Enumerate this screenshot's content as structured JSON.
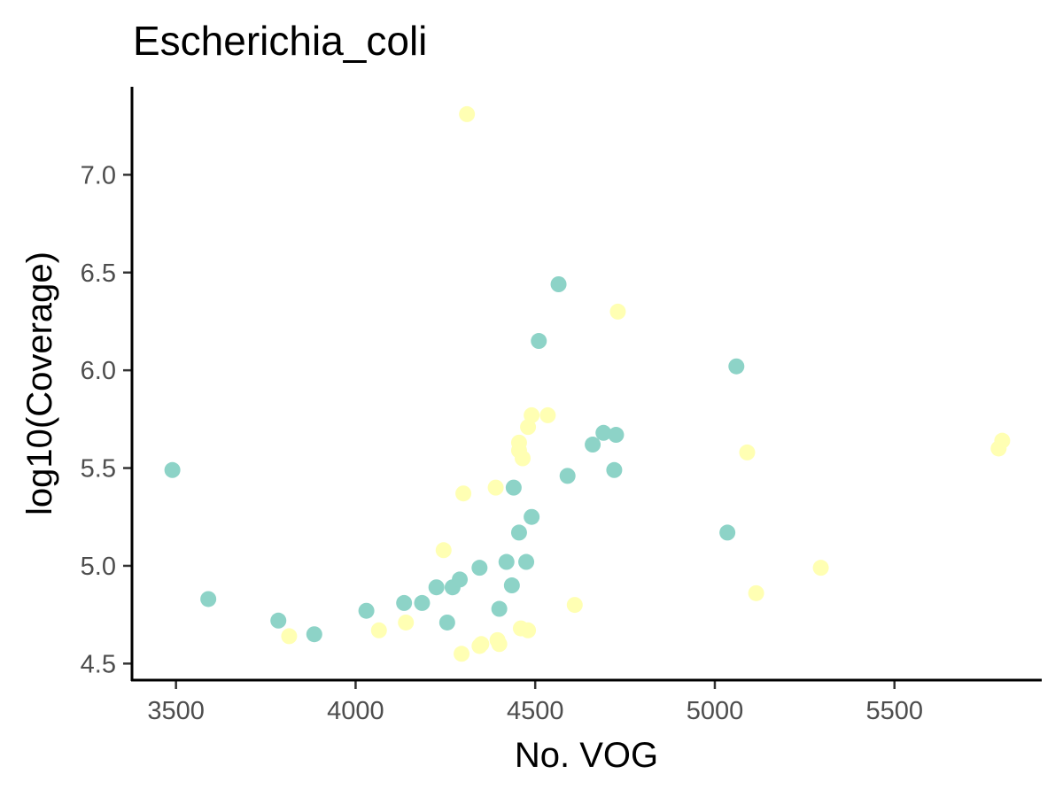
{
  "chart_data": {
    "type": "scatter",
    "title": "Escherichia_coli",
    "xlabel": "No. VOG",
    "ylabel": "log10(Coverage)",
    "xlim": [
      3380,
      5910
    ],
    "ylim": [
      4.42,
      7.45
    ],
    "x_ticks": [
      3500,
      4000,
      4500,
      5000,
      5500
    ],
    "x_tick_labels": [
      "3500",
      "4000",
      "4500",
      "5000",
      "5500"
    ],
    "y_ticks": [
      4.5,
      5.0,
      5.5,
      6.0,
      6.5,
      7.0
    ],
    "y_tick_labels": [
      "4.5",
      "5.0",
      "5.5",
      "6.0",
      "6.5",
      "7.0"
    ],
    "grid": false,
    "legend": "none",
    "series": [
      {
        "color": "#8dd3c7",
        "points": [
          {
            "x": 3490,
            "y": 5.49
          },
          {
            "x": 3590,
            "y": 4.83
          },
          {
            "x": 3785,
            "y": 4.72
          },
          {
            "x": 3885,
            "y": 4.65
          },
          {
            "x": 4030,
            "y": 4.77
          },
          {
            "x": 4135,
            "y": 4.81
          },
          {
            "x": 4185,
            "y": 4.81
          },
          {
            "x": 4225,
            "y": 4.89
          },
          {
            "x": 4255,
            "y": 4.71
          },
          {
            "x": 4270,
            "y": 4.89
          },
          {
            "x": 4290,
            "y": 4.93
          },
          {
            "x": 4345,
            "y": 4.99
          },
          {
            "x": 4400,
            "y": 4.78
          },
          {
            "x": 4420,
            "y": 5.02
          },
          {
            "x": 4435,
            "y": 4.9
          },
          {
            "x": 4440,
            "y": 5.4
          },
          {
            "x": 4455,
            "y": 5.17
          },
          {
            "x": 4475,
            "y": 5.02
          },
          {
            "x": 4490,
            "y": 5.25
          },
          {
            "x": 4510,
            "y": 6.15
          },
          {
            "x": 4565,
            "y": 6.44
          },
          {
            "x": 4590,
            "y": 5.46
          },
          {
            "x": 4660,
            "y": 5.62
          },
          {
            "x": 4690,
            "y": 5.68
          },
          {
            "x": 4720,
            "y": 5.49
          },
          {
            "x": 4725,
            "y": 5.67
          },
          {
            "x": 5035,
            "y": 5.17
          },
          {
            "x": 5060,
            "y": 6.02
          }
        ]
      },
      {
        "color": "#ffffb3",
        "points": [
          {
            "x": 3815,
            "y": 4.64
          },
          {
            "x": 4065,
            "y": 4.67
          },
          {
            "x": 4140,
            "y": 4.71
          },
          {
            "x": 4245,
            "y": 5.08
          },
          {
            "x": 4295,
            "y": 4.55
          },
          {
            "x": 4300,
            "y": 5.37
          },
          {
            "x": 4310,
            "y": 7.31
          },
          {
            "x": 4345,
            "y": 4.59
          },
          {
            "x": 4350,
            "y": 4.6
          },
          {
            "x": 4390,
            "y": 5.4
          },
          {
            "x": 4395,
            "y": 4.62
          },
          {
            "x": 4400,
            "y": 4.6
          },
          {
            "x": 4455,
            "y": 5.63
          },
          {
            "x": 4455,
            "y": 5.59
          },
          {
            "x": 4460,
            "y": 4.68
          },
          {
            "x": 4465,
            "y": 5.55
          },
          {
            "x": 4480,
            "y": 4.67
          },
          {
            "x": 4480,
            "y": 5.71
          },
          {
            "x": 4490,
            "y": 5.77
          },
          {
            "x": 4535,
            "y": 5.77
          },
          {
            "x": 4610,
            "y": 4.8
          },
          {
            "x": 4730,
            "y": 6.3
          },
          {
            "x": 5090,
            "y": 5.58
          },
          {
            "x": 5115,
            "y": 4.86
          },
          {
            "x": 5295,
            "y": 4.99
          },
          {
            "x": 5790,
            "y": 5.6
          },
          {
            "x": 5800,
            "y": 5.64
          }
        ]
      }
    ]
  }
}
